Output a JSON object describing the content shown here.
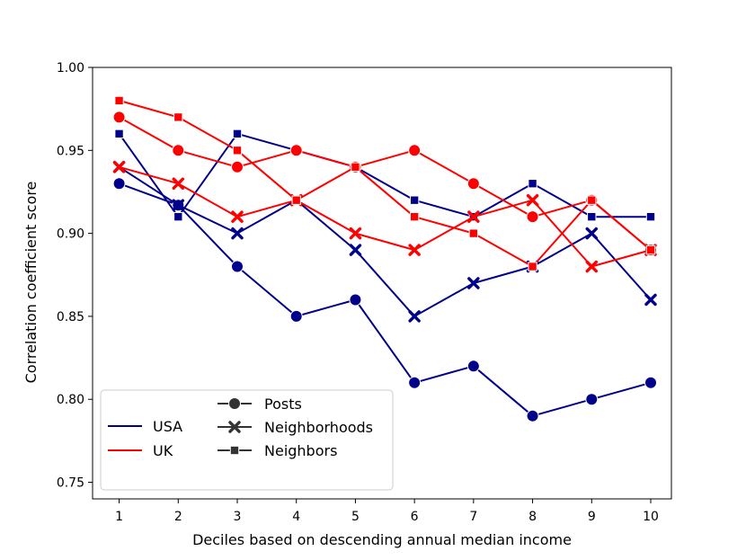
{
  "chart_data": {
    "type": "line",
    "title": "",
    "xlabel": "Deciles based on descending annual median income",
    "ylabel": "Correlation coefficient score",
    "x": [
      1,
      2,
      3,
      4,
      5,
      6,
      7,
      8,
      9,
      10
    ],
    "x_tick_labels": [
      "1",
      "2",
      "3",
      "4",
      "5",
      "6",
      "7",
      "8",
      "9",
      "10"
    ],
    "xlim": [
      0.55,
      10.35
    ],
    "ylim": [
      0.74,
      1.0
    ],
    "y_ticks": [
      0.75,
      0.8,
      0.85,
      0.9,
      0.95,
      1.0
    ],
    "y_tick_labels": [
      "0.75",
      "0.80",
      "0.85",
      "0.90",
      "0.95",
      "1.00"
    ],
    "grid": false,
    "colors": {
      "USA": "#00008b",
      "UK": "#ff0000",
      "legend_neutral": "#333333"
    },
    "series": [
      {
        "name": "USA Posts",
        "country": "USA",
        "metric": "Posts",
        "marker": "circle",
        "values": [
          0.93,
          0.917,
          0.88,
          0.85,
          0.86,
          0.81,
          0.82,
          0.79,
          0.8,
          0.81
        ]
      },
      {
        "name": "USA Neighborhoods",
        "country": "USA",
        "metric": "Neighborhoods",
        "marker": "x",
        "values": [
          0.94,
          0.917,
          0.9,
          0.92,
          0.89,
          0.85,
          0.87,
          0.88,
          0.9,
          0.86
        ]
      },
      {
        "name": "USA Neighbors",
        "country": "USA",
        "metric": "Neighbors",
        "marker": "square",
        "values": [
          0.96,
          0.91,
          0.96,
          0.95,
          0.94,
          0.92,
          0.91,
          0.93,
          0.91,
          0.91
        ]
      },
      {
        "name": "UK Posts",
        "country": "UK",
        "metric": "Posts",
        "marker": "circle",
        "values": [
          0.97,
          0.95,
          0.94,
          0.95,
          0.94,
          0.95,
          0.93,
          0.91,
          0.92,
          0.89
        ]
      },
      {
        "name": "UK Neighborhoods",
        "country": "UK",
        "metric": "Neighborhoods",
        "marker": "x",
        "values": [
          0.94,
          0.93,
          0.91,
          0.92,
          0.9,
          0.89,
          0.91,
          0.92,
          0.88,
          0.89
        ]
      },
      {
        "name": "UK Neighbors",
        "country": "UK",
        "metric": "Neighbors",
        "marker": "square",
        "values": [
          0.98,
          0.97,
          0.95,
          0.92,
          0.94,
          0.91,
          0.9,
          0.88,
          0.92,
          0.89
        ]
      }
    ],
    "legend": {
      "position": "lower-left",
      "hue_entries": [
        {
          "label": "USA",
          "color_key": "USA"
        },
        {
          "label": "UK",
          "color_key": "UK"
        }
      ],
      "style_entries": [
        {
          "label": "Posts",
          "marker": "circle"
        },
        {
          "label": "Neighborhoods",
          "marker": "x"
        },
        {
          "label": "Neighbors",
          "marker": "square"
        }
      ]
    }
  }
}
